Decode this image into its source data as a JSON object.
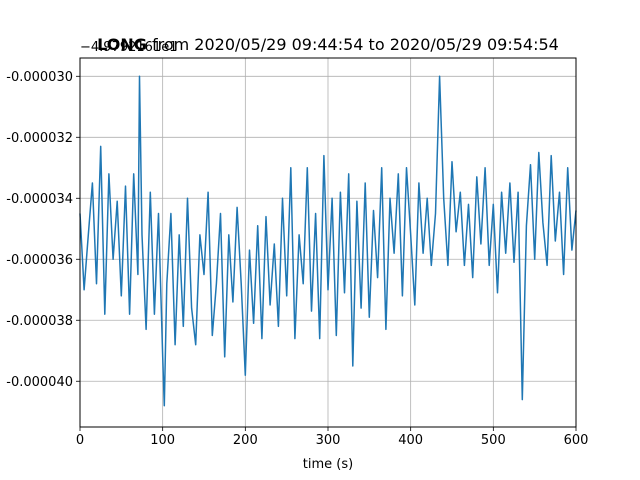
{
  "chart_data": {
    "type": "line",
    "title_bold": "LONG",
    "title_rest": " from 2020/05/29 09:44:54 to 2020/05/29 09:54:54",
    "xlabel": "time (s)",
    "ylabel": "",
    "offset_text": "−4.9792161e1",
    "xlim": [
      0,
      600
    ],
    "ylim": [
      -4.15e-05,
      -2.94e-05
    ],
    "x_ticks": [
      0,
      100,
      200,
      300,
      400,
      500,
      600
    ],
    "x_tick_labels": [
      "0",
      "100",
      "200",
      "300",
      "400",
      "500",
      "600"
    ],
    "y_ticks": [
      -3e-05,
      -3.2e-05,
      -3.4e-05,
      -3.6e-05,
      -3.8e-05,
      -4e-05
    ],
    "y_tick_labels": [
      "-0.000030",
      "-0.000032",
      "-0.000034",
      "-0.000036",
      "-0.000038",
      "-0.000040"
    ],
    "grid": true,
    "line_color": "#1f77b4",
    "series": [
      {
        "x": [
          0,
          5,
          10,
          15,
          20,
          25,
          30,
          35,
          40,
          45,
          50,
          55,
          60,
          65,
          70,
          72,
          75,
          80,
          85,
          90,
          95,
          100,
          102,
          105,
          110,
          115,
          120,
          125,
          130,
          135,
          140,
          145,
          150,
          155,
          160,
          165,
          170,
          175,
          180,
          185,
          190,
          195,
          200,
          205,
          210,
          215,
          220,
          225,
          230,
          235,
          240,
          245,
          250,
          255,
          260,
          265,
          270,
          275,
          280,
          285,
          290,
          295,
          300,
          305,
          310,
          315,
          320,
          325,
          330,
          335,
          340,
          345,
          350,
          355,
          360,
          365,
          370,
          375,
          380,
          385,
          390,
          395,
          400,
          405,
          410,
          415,
          420,
          425,
          430,
          435,
          440,
          445,
          450,
          455,
          460,
          465,
          470,
          475,
          480,
          485,
          490,
          495,
          500,
          505,
          510,
          515,
          520,
          525,
          530,
          535,
          540,
          545,
          550,
          555,
          560,
          565,
          570,
          575,
          580,
          585,
          590,
          595,
          600
        ],
        "values": [
          -3.45e-05,
          -3.7e-05,
          -3.52e-05,
          -3.35e-05,
          -3.68e-05,
          -3.23e-05,
          -3.78e-05,
          -3.32e-05,
          -3.6e-05,
          -3.41e-05,
          -3.72e-05,
          -3.36e-05,
          -3.78e-05,
          -3.32e-05,
          -3.65e-05,
          -3e-05,
          -3.52e-05,
          -3.83e-05,
          -3.38e-05,
          -3.78e-05,
          -3.45e-05,
          -3.92e-05,
          -4.08e-05,
          -3.68e-05,
          -3.45e-05,
          -3.88e-05,
          -3.52e-05,
          -3.82e-05,
          -3.4e-05,
          -3.76e-05,
          -3.88e-05,
          -3.52e-05,
          -3.65e-05,
          -3.38e-05,
          -3.85e-05,
          -3.68e-05,
          -3.45e-05,
          -3.92e-05,
          -3.52e-05,
          -3.74e-05,
          -3.43e-05,
          -3.68e-05,
          -3.98e-05,
          -3.57e-05,
          -3.81e-05,
          -3.49e-05,
          -3.86e-05,
          -3.46e-05,
          -3.75e-05,
          -3.55e-05,
          -3.82e-05,
          -3.4e-05,
          -3.72e-05,
          -3.3e-05,
          -3.86e-05,
          -3.52e-05,
          -3.68e-05,
          -3.3e-05,
          -3.77e-05,
          -3.45e-05,
          -3.86e-05,
          -3.26e-05,
          -3.7e-05,
          -3.4e-05,
          -3.85e-05,
          -3.38e-05,
          -3.71e-05,
          -3.32e-05,
          -3.95e-05,
          -3.41e-05,
          -3.76e-05,
          -3.35e-05,
          -3.79e-05,
          -3.44e-05,
          -3.66e-05,
          -3.3e-05,
          -3.83e-05,
          -3.4e-05,
          -3.58e-05,
          -3.32e-05,
          -3.72e-05,
          -3.3e-05,
          -3.52e-05,
          -3.75e-05,
          -3.35e-05,
          -3.58e-05,
          -3.4e-05,
          -3.62e-05,
          -3.45e-05,
          -3e-05,
          -3.4e-05,
          -3.62e-05,
          -3.28e-05,
          -3.51e-05,
          -3.38e-05,
          -3.62e-05,
          -3.42e-05,
          -3.66e-05,
          -3.33e-05,
          -3.55e-05,
          -3.3e-05,
          -3.62e-05,
          -3.42e-05,
          -3.71e-05,
          -3.38e-05,
          -3.58e-05,
          -3.35e-05,
          -3.61e-05,
          -3.38e-05,
          -4.06e-05,
          -3.49e-05,
          -3.29e-05,
          -3.6e-05,
          -3.25e-05,
          -3.48e-05,
          -3.62e-05,
          -3.26e-05,
          -3.54e-05,
          -3.38e-05,
          -3.65e-05,
          -3.3e-05,
          -3.57e-05,
          -3.44e-05
        ]
      }
    ]
  }
}
